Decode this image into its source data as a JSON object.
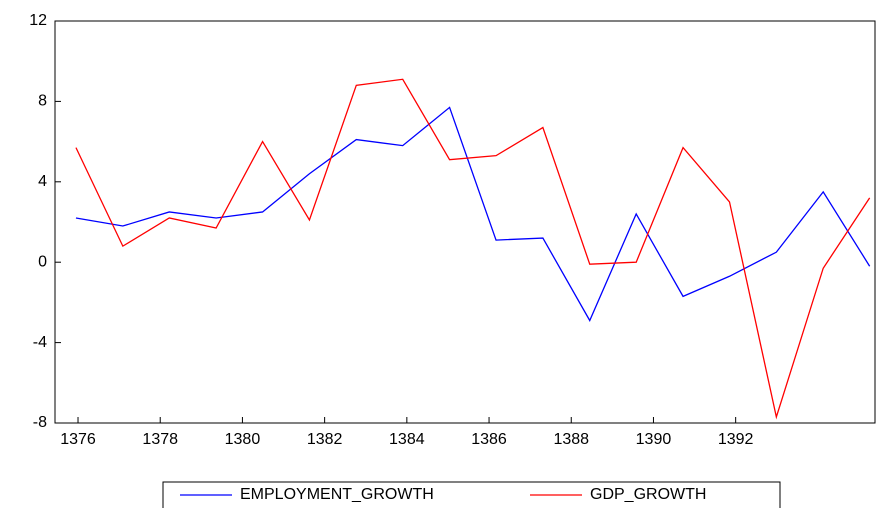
{
  "chart_data": {
    "type": "line",
    "x": [
      1375.95,
      1377.09,
      1378.22,
      1379.36,
      1380.49,
      1381.63,
      1382.77,
      1383.9,
      1385.04,
      1386.17,
      1387.31,
      1388.45,
      1389.58,
      1390.72,
      1391.85,
      1392.99,
      1394.13,
      1395.26
    ],
    "series": [
      {
        "name": "EMPLOYMENT_GROWTH",
        "color": "#0000ff",
        "values": [
          2.2,
          1.8,
          2.5,
          2.2,
          2.5,
          4.4,
          6.1,
          5.8,
          7.7,
          1.1,
          1.2,
          -2.9,
          2.4,
          -1.7,
          -0.7,
          0.5,
          3.5,
          -0.2
        ]
      },
      {
        "name": "GDP_GROWTH",
        "color": "#ff0000",
        "values": [
          5.7,
          0.8,
          2.2,
          1.7,
          6.0,
          2.1,
          8.8,
          9.1,
          5.1,
          5.3,
          6.7,
          -0.1,
          0.0,
          5.7,
          3.0,
          -7.7,
          -0.3,
          3.2
        ]
      }
    ],
    "xlim": [
      1375.44,
      1395.39
    ],
    "xticks": [
      1376,
      1378,
      1380,
      1382,
      1384,
      1386,
      1388,
      1390,
      1392
    ],
    "ylim": [
      -8,
      12
    ],
    "yticks": [
      -8,
      -4,
      0,
      4,
      8,
      12
    ],
    "legend": "bottom"
  }
}
